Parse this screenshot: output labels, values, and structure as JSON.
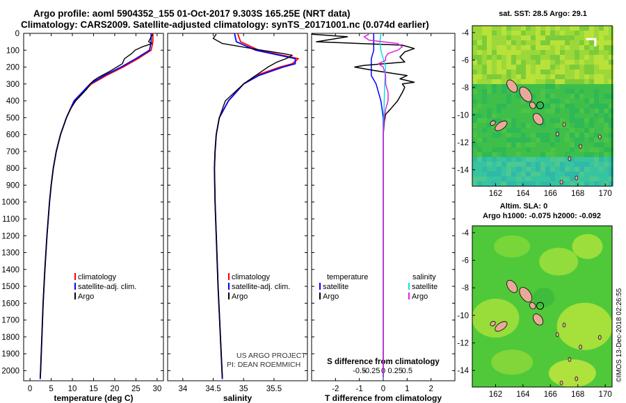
{
  "header": {
    "title_line1": "Argo profile: aoml 5904352_155 01-Oct-2017 9.303S 165.25E (NRT data)",
    "title_line2": "Climatology: CARS2009. Satellite-adjusted climatology: synTS_20171001.nc (0.074d earlier)"
  },
  "colors": {
    "climatology": "#ff0000",
    "satellite": "#0000ff",
    "argo": "#000000",
    "sat_salinity": "#00e5e5",
    "argo_salinity": "#e020e0"
  },
  "depth_axis": {
    "min": 0,
    "max": 2060,
    "ticks": [
      0,
      100,
      200,
      300,
      400,
      500,
      600,
      700,
      800,
      900,
      1000,
      1100,
      1200,
      1300,
      1400,
      1500,
      1600,
      1700,
      1800,
      1900,
      2000
    ]
  },
  "chart_data": [
    {
      "type": "line",
      "title": "temperature profile",
      "xlabel": "temperature (deg C)",
      "ylabel": "depth",
      "xlim": [
        -1.5,
        31.5
      ],
      "xticks": [
        0,
        5,
        10,
        15,
        20,
        25,
        30
      ],
      "legend": [
        "climatology",
        "satellite-adj. clim.",
        "Argo"
      ],
      "series": [
        {
          "name": "climatology",
          "depth": [
            0,
            50,
            100,
            150,
            200,
            250,
            300,
            400,
            500,
            600,
            700,
            800,
            900,
            1000,
            1200,
            1400,
            1600,
            1800,
            2000,
            2050
          ],
          "values": [
            29.0,
            29.0,
            28.6,
            25.5,
            22.0,
            18.0,
            14.5,
            10.5,
            8.6,
            7.2,
            6.2,
            5.5,
            5.0,
            4.6,
            4.0,
            3.5,
            3.1,
            2.8,
            2.5,
            2.4
          ]
        },
        {
          "name": "satellite-adj. clim.",
          "depth": [
            0,
            50,
            100,
            150,
            200,
            250,
            300,
            400,
            500,
            600,
            700,
            800,
            900,
            1000,
            1200,
            1400,
            1600,
            1800,
            2000,
            2050
          ],
          "values": [
            28.6,
            28.6,
            28.2,
            25.0,
            21.5,
            17.5,
            14.2,
            10.4,
            8.6,
            7.2,
            6.2,
            5.5,
            5.0,
            4.6,
            4.0,
            3.5,
            3.1,
            2.8,
            2.5,
            2.4
          ]
        },
        {
          "name": "Argo",
          "depth": [
            5,
            20,
            50,
            60,
            80,
            100,
            120,
            150,
            180,
            200,
            230,
            260,
            280,
            300,
            330,
            360,
            400,
            450,
            500,
            600,
            700,
            800,
            900,
            1000,
            1200,
            1400,
            1600,
            1800,
            2000,
            2040
          ],
          "values": [
            29.0,
            28.6,
            28.0,
            28.8,
            26.5,
            24.8,
            24.0,
            22.3,
            21.8,
            20.5,
            18.5,
            16.2,
            15.0,
            14.2,
            13.4,
            12.3,
            10.8,
            9.5,
            8.6,
            7.2,
            6.2,
            5.5,
            5.0,
            4.6,
            4.0,
            3.5,
            3.1,
            2.8,
            2.5,
            2.4
          ]
        }
      ]
    },
    {
      "type": "line",
      "title": "salinity profile",
      "xlabel": "salinity",
      "ylabel": "depth",
      "xlim": [
        33.75,
        36.05
      ],
      "xticks": [
        34,
        34.5,
        35,
        35.5
      ],
      "xtick_labels": [
        "34",
        "34.5",
        "35",
        "35.5"
      ],
      "legend": [
        "climatology",
        "satellite-adj. clim.",
        "Argo"
      ],
      "annotation": [
        "US ARGO PROJECT",
        "PI: DEAN ROEMMICH"
      ],
      "series": [
        {
          "name": "climatology",
          "depth": [
            0,
            50,
            100,
            150,
            180,
            200,
            250,
            300,
            400,
            500,
            600,
            700,
            800,
            1000,
            1500,
            2050
          ],
          "values": [
            34.9,
            34.95,
            35.25,
            35.9,
            35.8,
            35.6,
            35.2,
            35.0,
            34.75,
            34.6,
            34.55,
            34.53,
            34.52,
            34.53,
            34.58,
            34.65
          ]
        },
        {
          "name": "satellite-adj. clim.",
          "depth": [
            0,
            50,
            100,
            150,
            180,
            200,
            250,
            300,
            400,
            500,
            600,
            700,
            800,
            1000,
            1500,
            2050
          ],
          "values": [
            34.85,
            34.88,
            35.2,
            35.85,
            35.85,
            35.65,
            35.25,
            35.0,
            34.75,
            34.6,
            34.55,
            34.53,
            34.52,
            34.53,
            34.58,
            34.65
          ]
        },
        {
          "name": "Argo",
          "depth": [
            5,
            30,
            60,
            100,
            120,
            130,
            150,
            170,
            200,
            250,
            300,
            350,
            400,
            500,
            600,
            700,
            800,
            1000,
            1500,
            2040
          ],
          "values": [
            34.55,
            34.5,
            34.65,
            35.3,
            35.65,
            35.8,
            35.7,
            35.55,
            35.4,
            35.2,
            35.0,
            34.85,
            34.7,
            34.6,
            34.55,
            34.53,
            34.52,
            34.53,
            34.58,
            34.65
          ]
        }
      ]
    },
    {
      "type": "line",
      "title": "difference from climatology",
      "xlabel": "T difference from climatology",
      "xlabel_top": "S difference from climatology",
      "xlim": [
        -3,
        3
      ],
      "xticks": [
        -2,
        -1,
        0,
        1,
        2
      ],
      "s_ticks": [
        "-0.5",
        "-0.25",
        "0",
        "0.25",
        "0.5"
      ],
      "legend_temperature_title": "temperature",
      "legend_salinity_title": "salinity",
      "legend_temperature": [
        "satellite",
        "Argo"
      ],
      "legend_salinity": [
        "satellite",
        "Argo"
      ],
      "series": [
        {
          "name": "temperature satellite",
          "depth": [
            0,
            50,
            100,
            150,
            200,
            250,
            300,
            400,
            500,
            600,
            800,
            1000,
            2050
          ],
          "values": [
            -0.4,
            -0.4,
            -0.4,
            -0.5,
            -0.5,
            -0.5,
            -0.3,
            -0.1,
            0,
            0,
            0,
            0,
            0
          ]
        },
        {
          "name": "temperature Argo",
          "depth": [
            5,
            20,
            50,
            70,
            90,
            110,
            140,
            170,
            190,
            200,
            220,
            250,
            270,
            290,
            300,
            320,
            350,
            400,
            450,
            480,
            520,
            600,
            800,
            1000,
            1500,
            2040
          ],
          "values": [
            -3.0,
            -1.5,
            -2.8,
            0.8,
            1.3,
            0.9,
            0.7,
            0.9,
            -0.8,
            -1.2,
            -0.4,
            1.0,
            0.7,
            1.3,
            0.8,
            0.9,
            0.8,
            0.6,
            0.3,
            0.1,
            0.05,
            0,
            0,
            0,
            0,
            0
          ]
        },
        {
          "name": "salinity satellite",
          "depth": [
            0,
            50,
            100,
            150,
            200,
            250,
            300,
            400,
            500,
            600,
            800,
            1000,
            1500,
            2050
          ],
          "values": [
            -0.05,
            -0.07,
            -0.05,
            0.0,
            0.05,
            0.04,
            0.03,
            0.02,
            0.01,
            0.0,
            0.0,
            0.0,
            0.0,
            0.0
          ]
        },
        {
          "name": "salinity Argo",
          "depth": [
            5,
            20,
            40,
            60,
            80,
            100,
            120,
            140,
            160,
            180,
            200,
            250,
            300,
            350,
            400,
            450,
            500,
            600,
            800,
            1000,
            2040
          ],
          "values": [
            -0.3,
            -0.4,
            -0.3,
            0.3,
            0.4,
            0.3,
            0.1,
            0.05,
            0.05,
            -0.1,
            0.0,
            0.05,
            0.05,
            0.1,
            0.1,
            0.05,
            0.02,
            0.0,
            0.0,
            0.0,
            0.0
          ]
        }
      ]
    },
    {
      "type": "heatmap",
      "title": "sat. SST: 28.5 Argo: 29.1",
      "xticks": [
        162,
        164,
        166,
        168,
        170
      ],
      "yticks": [
        -4,
        -6,
        -8,
        -10,
        -12,
        -14
      ],
      "marker": {
        "lon": 165.25,
        "lat": -9.303
      }
    },
    {
      "type": "heatmap",
      "title_line1": "Altim. SLA: 0",
      "title_line2": "Argo h1000: -0.075 h2000: -0.092",
      "xticks": [
        162,
        164,
        166,
        168,
        170
      ],
      "yticks": [
        -4,
        -6,
        -8,
        -10,
        -12,
        -14
      ],
      "marker": {
        "lon": 165.25,
        "lat": -9.303
      }
    }
  ],
  "credit": "©IMOS 13-Dec-2018 02:26:55"
}
